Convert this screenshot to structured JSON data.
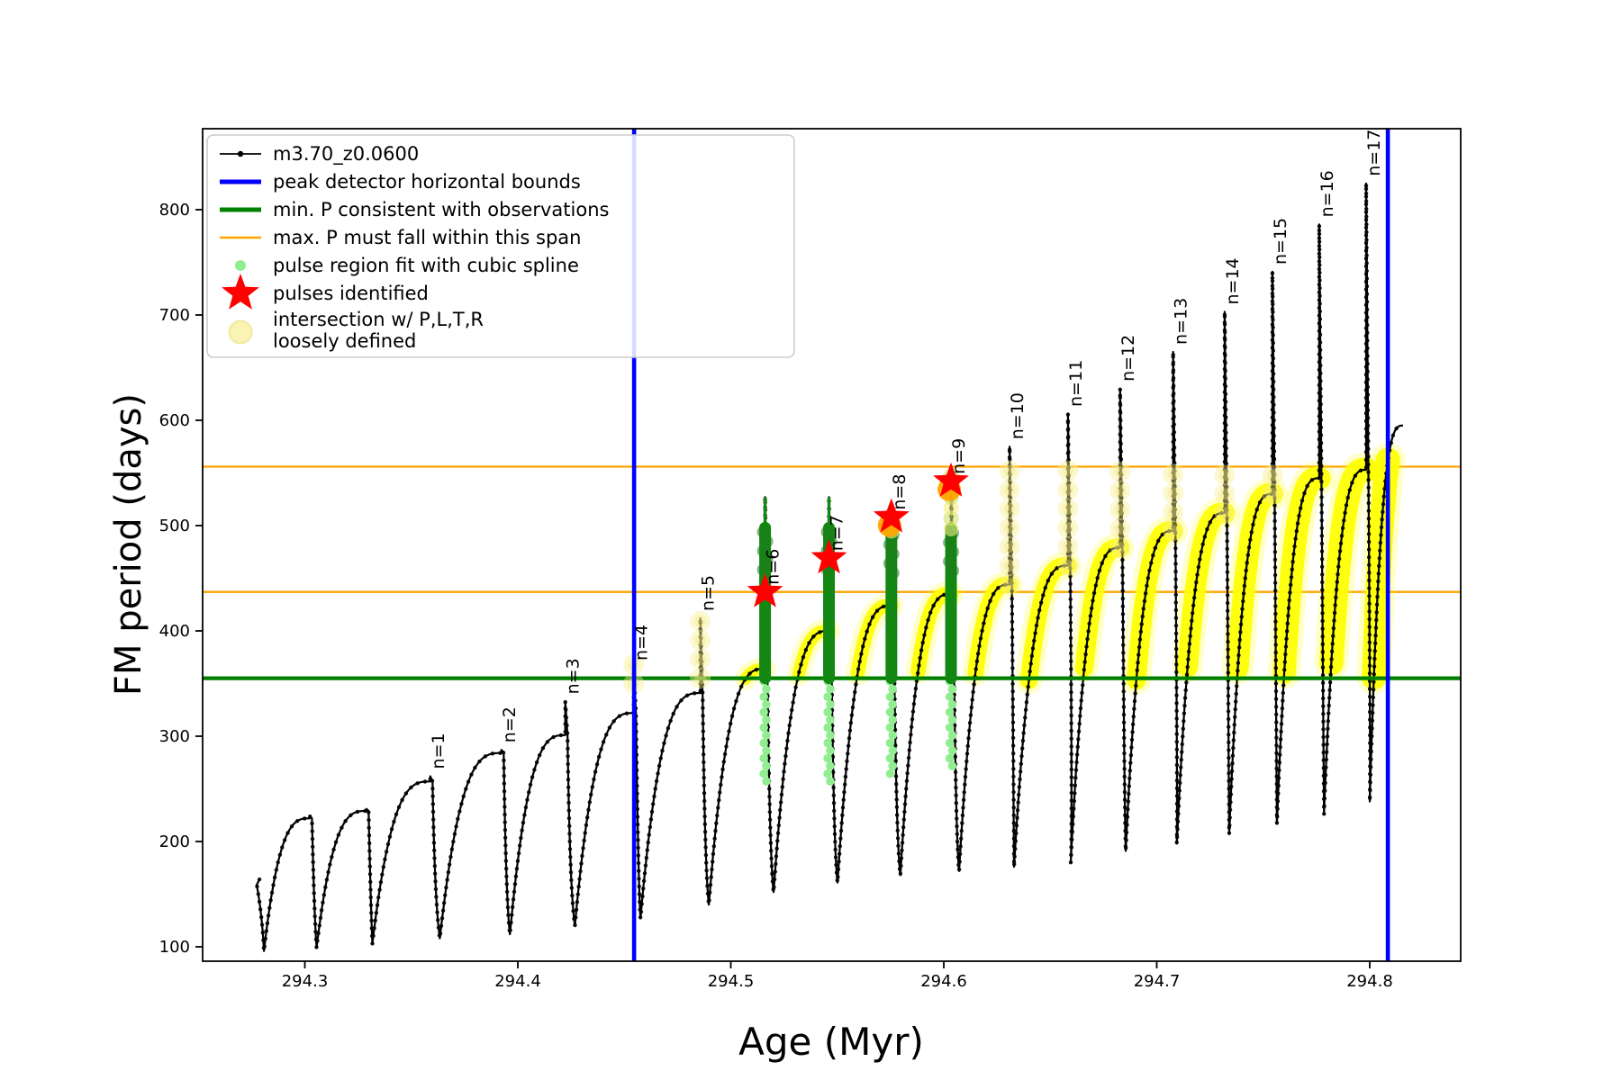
{
  "chart_data": {
    "type": "line",
    "series_name": "m3.70_z0.0600",
    "xlabel": "Age (Myr)",
    "ylabel": "FM period (days)",
    "xlim": [
      294.252,
      294.843
    ],
    "ylim": [
      86,
      877
    ],
    "xticks": [
      "294.3",
      "294.4",
      "294.5",
      "294.6",
      "294.7",
      "294.8"
    ],
    "xtick_values": [
      294.3,
      294.4,
      294.5,
      294.6,
      294.7,
      294.8
    ],
    "yticks": [
      "100",
      "200",
      "300",
      "400",
      "500",
      "600",
      "700",
      "800"
    ],
    "ytick_values": [
      100,
      200,
      300,
      400,
      500,
      600,
      700,
      800
    ],
    "grid": false,
    "legend_position": "upper left",
    "legend": [
      {
        "label": "m3.70_z0.0600",
        "marker": "line-dot",
        "color": "#000000"
      },
      {
        "label": "peak detector horizontal bounds",
        "marker": "line",
        "color": "#0000ff",
        "lw": 5
      },
      {
        "label": "min. P consistent with observations",
        "marker": "line",
        "color": "#008000",
        "lw": 5
      },
      {
        "label": "max. P must fall within this span",
        "marker": "line",
        "color": "#ffa500",
        "lw": 2.5
      },
      {
        "label": "pulse region fit with cubic spline",
        "marker": "dot",
        "color": "#90ee90"
      },
      {
        "label": "pulses identified",
        "marker": "star",
        "color": "#ff0000"
      },
      {
        "label": "intersection w/ P,L,T,R\nloosely defined",
        "marker": "bigdot",
        "color": "#f9f3b4"
      }
    ],
    "colors": {
      "series": "#000000",
      "peak_bounds": "#0000ff",
      "min_p_line": "#008000",
      "max_p_span": "#ffa500",
      "pulse_column": "#128712",
      "spline_dots": "#90ee90",
      "stars": "#ff0000",
      "intersection": "#ffff00",
      "intersection_pale": "#f7ef8e"
    },
    "vlines_blue_age": [
      294.4546,
      294.8085
    ],
    "hlines_orange_period": [
      437,
      556
    ],
    "hline_green_period": 355,
    "start_point": {
      "age": 294.2787,
      "period": 164
    },
    "cycles": [
      {
        "n": null,
        "min_age": 294.2808,
        "min_period": 96,
        "peak_age": 294.3023,
        "arc_period": 222,
        "spike_period": 224
      },
      {
        "n": null,
        "min_age": 294.3055,
        "min_period": 99,
        "peak_age": 294.3289,
        "arc_period": 229,
        "spike_period": 231
      },
      {
        "n": 1,
        "min_age": 294.3317,
        "min_period": 103,
        "peak_age": 294.3589,
        "arc_period": 257,
        "spike_period": 262
      },
      {
        "n": 2,
        "min_age": 294.3634,
        "min_period": 108,
        "peak_age": 294.3923,
        "arc_period": 284,
        "spike_period": 287
      },
      {
        "n": 3,
        "min_age": 294.3963,
        "min_period": 112,
        "peak_age": 294.4223,
        "arc_period": 301,
        "spike_period": 333
      },
      {
        "n": 4,
        "min_age": 294.4268,
        "min_period": 120,
        "peak_age": 294.4544,
        "arc_period": 322,
        "spike_period": 365
      },
      {
        "n": 5,
        "min_age": 294.4576,
        "min_period": 127,
        "peak_age": 294.4857,
        "arc_period": 341,
        "spike_period": 412
      },
      {
        "n": 6,
        "min_age": 294.4897,
        "min_period": 140,
        "peak_age": 294.5161,
        "arc_period": 364,
        "spike_period": 527
      },
      {
        "n": 7,
        "min_age": 294.5201,
        "min_period": 152,
        "peak_age": 294.5461,
        "arc_period": 400,
        "spike_period": 527
      },
      {
        "n": 8,
        "min_age": 294.5501,
        "min_period": 161,
        "peak_age": 294.5754,
        "arc_period": 424,
        "spike_period": 512
      },
      {
        "n": 9,
        "min_age": 294.5796,
        "min_period": 168,
        "peak_age": 294.6034,
        "arc_period": 435,
        "spike_period": 553
      },
      {
        "n": 10,
        "min_age": 294.6072,
        "min_period": 172,
        "peak_age": 294.6309,
        "arc_period": 444,
        "spike_period": 575
      },
      {
        "n": 11,
        "min_age": 294.633,
        "min_period": 176,
        "peak_age": 294.6583,
        "arc_period": 462,
        "spike_period": 606
      },
      {
        "n": 12,
        "min_age": 294.6596,
        "min_period": 180,
        "peak_age": 294.6828,
        "arc_period": 479,
        "spike_period": 630
      },
      {
        "n": 13,
        "min_age": 294.6854,
        "min_period": 191,
        "peak_age": 294.7077,
        "arc_period": 495,
        "spike_period": 665
      },
      {
        "n": 14,
        "min_age": 294.7094,
        "min_period": 198,
        "peak_age": 294.7319,
        "arc_period": 512,
        "spike_period": 703
      },
      {
        "n": 15,
        "min_age": 294.734,
        "min_period": 207,
        "peak_age": 294.7543,
        "arc_period": 530,
        "spike_period": 741
      },
      {
        "n": 16,
        "min_age": 294.7564,
        "min_period": 217,
        "peak_age": 294.7763,
        "arc_period": 545,
        "spike_period": 786
      },
      {
        "n": 17,
        "min_age": 294.7785,
        "min_period": 226,
        "peak_age": 294.7983,
        "arc_period": 553,
        "spike_period": 825
      },
      {
        "n": null,
        "min_age": 294.8,
        "min_period": 238,
        "peak_age": 294.8156,
        "arc_period": 595,
        "spike_period": null
      }
    ],
    "pulses": [
      {
        "n": 1,
        "label": "n=1",
        "age": 294.3589,
        "peak_period": 262
      },
      {
        "n": 2,
        "label": "n=2",
        "age": 294.3923,
        "peak_period": 287
      },
      {
        "n": 3,
        "label": "n=3",
        "age": 294.4223,
        "peak_period": 333
      },
      {
        "n": 4,
        "label": "n=4",
        "age": 294.4544,
        "peak_period": 365,
        "yellow_dots": [
          350,
          368
        ]
      },
      {
        "n": 5,
        "label": "n=5",
        "age": 294.4857,
        "peak_period": 412,
        "yellow_dots": [
          355,
          410
        ]
      },
      {
        "n": 6,
        "label": "n=6",
        "age": 294.5161,
        "peak_period": 527,
        "star_period": 437,
        "green_column": [
          355,
          498
        ],
        "green_spike_top": 527,
        "lightgreen_dots": [
          252,
          352
        ]
      },
      {
        "n": 7,
        "label": "n=7",
        "age": 294.5461,
        "peak_period": 527,
        "star_period": 469,
        "green_column": [
          355,
          498
        ],
        "green_spike_top": 527,
        "lightgreen_dots": [
          252,
          352
        ]
      },
      {
        "n": 8,
        "label": "n=8",
        "age": 294.5754,
        "peak_period": 512,
        "star_period": 508,
        "star_halo": true,
        "green_column": [
          355,
          495
        ],
        "lightgreen_dots": [
          262,
          352
        ],
        "greenyellow_dots": [
          495,
          514
        ]
      },
      {
        "n": 9,
        "label": "n=9",
        "age": 294.6034,
        "peak_period": 553,
        "star_period": 542,
        "star_halo": true,
        "green_column": [
          355,
          497
        ],
        "lightgreen_dots": [
          270,
          352
        ],
        "greenyellow_dots": [
          497,
          550
        ]
      },
      {
        "n": 10,
        "label": "n=10",
        "age": 294.6309,
        "peak_period": 575,
        "yellow_dots": [
          444,
          556
        ]
      },
      {
        "n": 11,
        "label": "n=11",
        "age": 294.6583,
        "peak_period": 606,
        "yellow_dots": [
          462,
          556
        ]
      },
      {
        "n": 12,
        "label": "n=12",
        "age": 294.6828,
        "peak_period": 630,
        "yellow_dots": [
          479,
          556
        ]
      },
      {
        "n": 13,
        "label": "n=13",
        "age": 294.7077,
        "peak_period": 665,
        "yellow_dots": [
          495,
          556
        ]
      },
      {
        "n": 14,
        "label": "n=14",
        "age": 294.7319,
        "peak_period": 703,
        "yellow_dots": [
          512,
          556
        ]
      },
      {
        "n": 15,
        "label": "n=15",
        "age": 294.7543,
        "peak_period": 741,
        "yellow_dots": [
          530,
          556
        ]
      },
      {
        "n": 16,
        "label": "n=16",
        "age": 294.7763,
        "peak_period": 786
      },
      {
        "n": 17,
        "label": "n=17",
        "age": 294.7983,
        "peak_period": 825
      }
    ]
  }
}
